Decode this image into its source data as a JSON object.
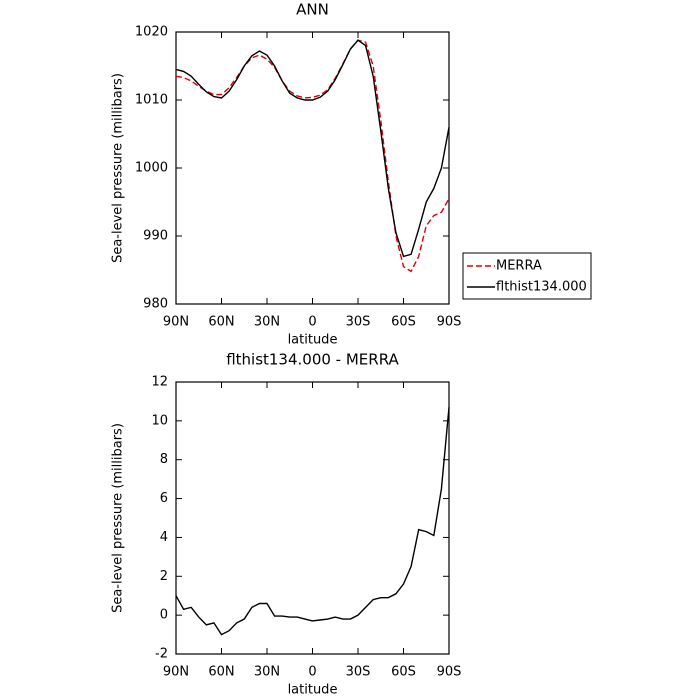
{
  "chart_data": [
    {
      "type": "line",
      "title": "ANN",
      "xlabel": "latitude",
      "ylabel": "Sea-level pressure (millibars)",
      "x": [
        90,
        85,
        80,
        75,
        70,
        65,
        60,
        55,
        50,
        45,
        40,
        35,
        30,
        25,
        20,
        15,
        10,
        5,
        0,
        -5,
        -10,
        -15,
        -20,
        -25,
        -30,
        -35,
        -40,
        -45,
        -50,
        -55,
        -60,
        -65,
        -70,
        -75,
        -80,
        -85,
        -90
      ],
      "series": [
        {
          "name": "MERRA",
          "color": "#e00000",
          "line_style": "dashed",
          "values": [
            1013.5,
            1013.3,
            1012.8,
            1012.0,
            1011.3,
            1010.8,
            1010.8,
            1011.8,
            1013.3,
            1015.0,
            1016.2,
            1016.6,
            1016.0,
            1014.8,
            1012.8,
            1011.3,
            1010.6,
            1010.3,
            1010.4,
            1010.7,
            1011.5,
            1013.2,
            1015.3,
            1017.5,
            1018.8,
            1018.5,
            1015.0,
            1007.0,
            998.0,
            990.0,
            985.5,
            984.8,
            987.0,
            991.5,
            993.0,
            993.5,
            995.5
          ]
        },
        {
          "name": "flthist134.000",
          "color": "#000000",
          "line_style": "solid",
          "values": [
            1014.5,
            1014.2,
            1013.5,
            1012.3,
            1011.2,
            1010.5,
            1010.3,
            1011.3,
            1013.0,
            1015.0,
            1016.5,
            1017.2,
            1016.6,
            1015.0,
            1012.8,
            1011.0,
            1010.3,
            1010.0,
            1010.0,
            1010.4,
            1011.3,
            1013.0,
            1015.2,
            1017.5,
            1018.8,
            1018.0,
            1013.5,
            1005.5,
            997.0,
            990.5,
            987.0,
            987.3,
            991.0,
            995.0,
            997.0,
            1000.0,
            1006.0
          ]
        }
      ],
      "xlim": [
        90,
        -90
      ],
      "xticks": [
        {
          "value": 90,
          "label": "90N"
        },
        {
          "value": 60,
          "label": "60N"
        },
        {
          "value": 30,
          "label": "30N"
        },
        0,
        {
          "value": -30,
          "label": "30S"
        },
        {
          "value": -60,
          "label": "60S"
        },
        {
          "value": -90,
          "label": "90S"
        }
      ],
      "ylim": [
        980,
        1020
      ],
      "yticks": [
        980,
        990,
        1000,
        1010,
        1020
      ],
      "legend": "outside-right"
    },
    {
      "type": "line",
      "title": "flthist134.000 - MERRA",
      "xlabel": "latitude",
      "ylabel": "Sea-level pressure (millibars)",
      "x": [
        90,
        85,
        80,
        75,
        70,
        65,
        60,
        55,
        50,
        45,
        40,
        35,
        30,
        25,
        20,
        15,
        10,
        5,
        0,
        -5,
        -10,
        -15,
        -20,
        -25,
        -30,
        -35,
        -40,
        -45,
        -50,
        -55,
        -60,
        -65,
        -70,
        -75,
        -80,
        -85,
        -90
      ],
      "series": [
        {
          "color": "#000000",
          "line_style": "solid",
          "values": [
            1.0,
            0.3,
            0.4,
            -0.1,
            -0.5,
            -0.4,
            -1.0,
            -0.8,
            -0.4,
            -0.2,
            0.4,
            0.6,
            0.6,
            -0.05,
            -0.05,
            -0.1,
            -0.1,
            -0.2,
            -0.3,
            -0.25,
            -0.2,
            -0.1,
            -0.2,
            -0.2,
            0.0,
            0.4,
            0.8,
            0.9,
            0.9,
            1.1,
            1.6,
            2.5,
            4.4,
            4.3,
            4.1,
            6.5,
            10.7
          ]
        }
      ],
      "xlim": [
        90,
        -90
      ],
      "xticks": [
        {
          "value": 90,
          "label": "90N"
        },
        {
          "value": 60,
          "label": "60N"
        },
        {
          "value": 30,
          "label": "30N"
        },
        0,
        {
          "value": -30,
          "label": "30S"
        },
        {
          "value": -60,
          "label": "60S"
        },
        {
          "value": -90,
          "label": "90S"
        }
      ],
      "ylim": [
        -2,
        12
      ],
      "yticks": [
        -2,
        0,
        2,
        4,
        6,
        8,
        10,
        12
      ]
    }
  ]
}
